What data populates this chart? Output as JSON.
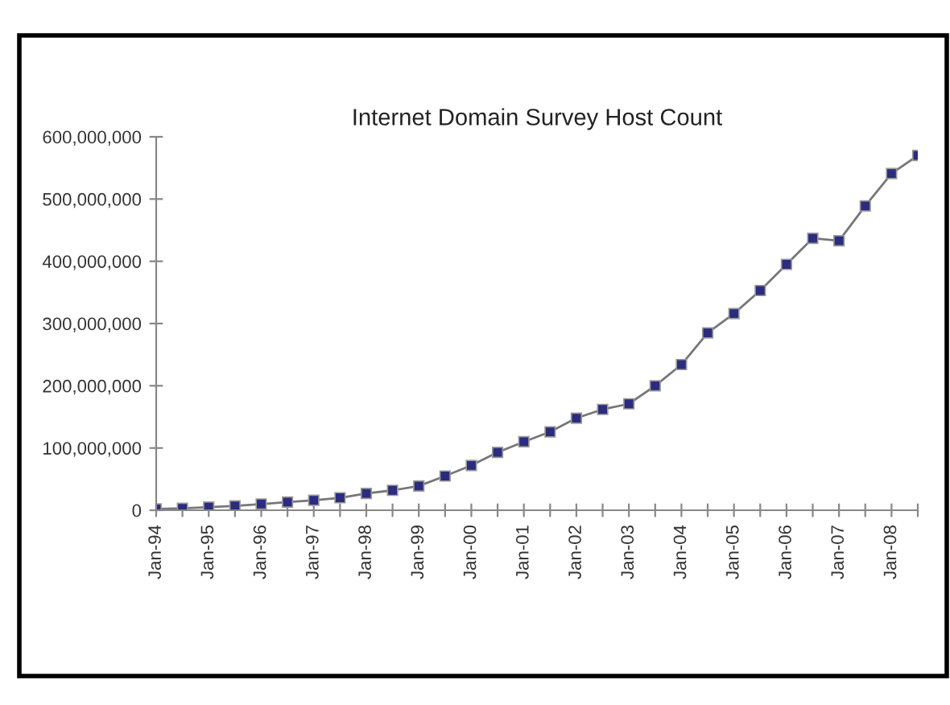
{
  "chart_data": {
    "type": "line",
    "title": "Internet Domain Survey Host Count",
    "categories": [
      "Jan-94",
      null,
      "Jan-95",
      null,
      "Jan-96",
      null,
      "Jan-97",
      null,
      "Jan-98",
      null,
      "Jan-99",
      null,
      "Jan-00",
      null,
      "Jan-01",
      null,
      "Jan-02",
      null,
      "Jan-03",
      null,
      "Jan-04",
      null,
      "Jan-05",
      null,
      "Jan-06",
      null,
      "Jan-07",
      null,
      "Jan-08",
      null
    ],
    "series": [
      {
        "color": "#2b2b7f",
        "values": [
          2000000,
          3000000,
          5000000,
          7000000,
          10000000,
          13000000,
          16000000,
          20000000,
          27000000,
          32000000,
          39000000,
          55000000,
          72000000,
          93000000,
          110000000,
          126000000,
          148000000,
          162000000,
          171000000,
          200000000,
          234000000,
          285000000,
          316000000,
          353000000,
          395000000,
          437000000,
          433000000,
          489000000,
          541000000,
          570000000
        ]
      }
    ],
    "ylim": [
      0,
      600000000
    ],
    "yticks": [
      0,
      {
        "value": 100000000,
        "label": "100,000,000"
      },
      {
        "value": 200000000,
        "label": "200,000,000"
      },
      {
        "value": 300000000,
        "label": "300,000,000"
      },
      {
        "value": 400000000,
        "label": "400,000,000"
      },
      {
        "value": 500000000,
        "label": "500,000,000"
      },
      {
        "value": 600000000,
        "label": "600,000,000"
      }
    ],
    "marker": "square",
    "line_style": "solid",
    "grid": false,
    "legend": false
  }
}
